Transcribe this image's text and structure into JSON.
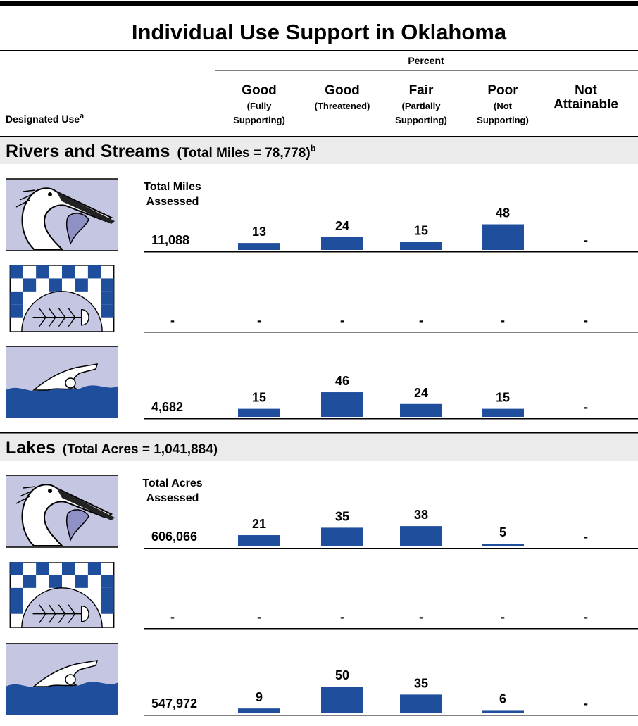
{
  "title": "Individual Use Support in Oklahoma",
  "header": {
    "percent": "Percent",
    "designated_use": "Designated Use",
    "designated_use_note": "a",
    "columns": [
      {
        "label": "Good",
        "sub": [
          "(Fully",
          "Supporting)"
        ]
      },
      {
        "label": "Good",
        "sub": [
          "(Threatened)"
        ]
      },
      {
        "label": "Fair",
        "sub": [
          "(Partially",
          "Supporting)"
        ]
      },
      {
        "label": "Poor",
        "sub": [
          "(Not",
          "Supporting)"
        ]
      },
      {
        "label": [
          "Not",
          "Attainable"
        ],
        "sub": []
      }
    ]
  },
  "sections": [
    {
      "title": "Rivers and Streams",
      "total": "(Total Miles = 78,778)",
      "note": "b",
      "assessed_label": [
        "Total Miles",
        "Assessed"
      ],
      "rows": [
        {
          "assessed": "11,088",
          "values": [
            13,
            24,
            15,
            48,
            "-"
          ]
        },
        {
          "assessed": "-",
          "values": [
            "-",
            "-",
            "-",
            "-",
            "-"
          ]
        },
        {
          "assessed": "4,682",
          "values": [
            15,
            46,
            24,
            15,
            "-"
          ]
        }
      ]
    },
    {
      "title": "Lakes",
      "total": "(Total Acres = 1,041,884)",
      "assessed_label": [
        "Total Acres",
        "Assessed"
      ],
      "rows": [
        {
          "assessed": "606,066",
          "values": [
            21,
            35,
            38,
            5,
            "-"
          ]
        },
        {
          "assessed": "-",
          "values": [
            "-",
            "-",
            "-",
            "-",
            "-"
          ]
        },
        {
          "assessed": "547,972",
          "values": [
            9,
            50,
            35,
            6,
            "-"
          ]
        }
      ]
    }
  ]
}
